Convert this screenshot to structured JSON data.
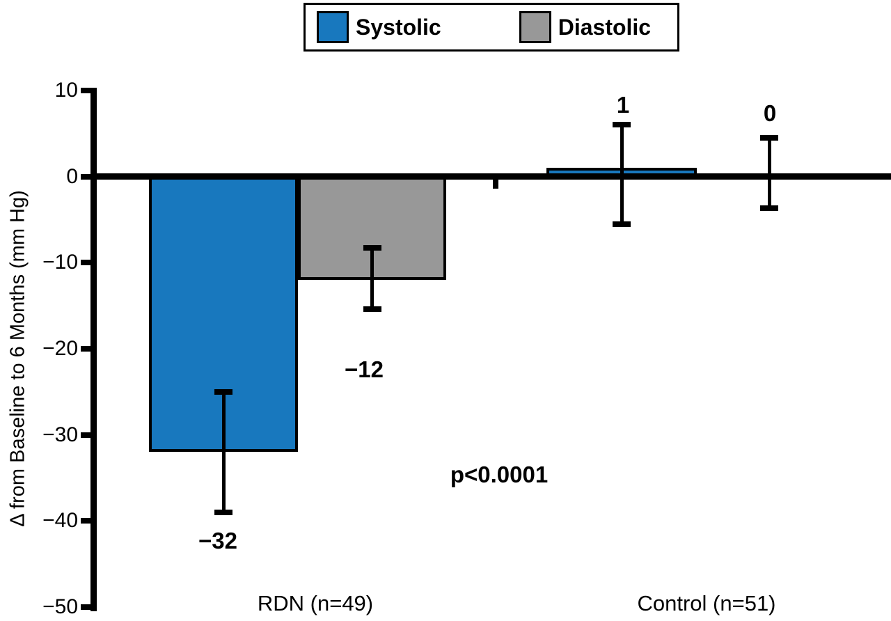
{
  "chart_data": {
    "type": "bar",
    "title": "",
    "ylabel": "Δ from Baseline to 6 Months (mm Hg)",
    "xlabel": "",
    "ylim": [
      -50,
      10
    ],
    "yticks": [
      {
        "value": 10,
        "label": "10"
      },
      {
        "value": 0,
        "label": "0"
      },
      {
        "value": -10,
        "label": "−10"
      },
      {
        "value": -20,
        "label": "−20"
      },
      {
        "value": -30,
        "label": "−30"
      },
      {
        "value": -40,
        "label": "−40"
      },
      {
        "value": -50,
        "label": "−50"
      }
    ],
    "categories": [
      "RDN (n=49)",
      "Control (n=51)"
    ],
    "series": [
      {
        "name": "Systolic",
        "color": "#1878BE",
        "values": [
          -32,
          1
        ],
        "value_labels": [
          "−32",
          "1"
        ],
        "error_high": [
          -25,
          6
        ],
        "error_low": [
          -39,
          -5.5
        ]
      },
      {
        "name": "Diastolic",
        "color": "#989898",
        "values": [
          -12,
          0
        ],
        "value_labels": [
          "−12",
          "0"
        ],
        "error_high": [
          -8.3,
          4.5
        ],
        "error_low": [
          -15.4,
          -3.7
        ]
      }
    ],
    "annotation": "p<0.0001",
    "legend_position": "top",
    "grid": false,
    "axis_color": "#000000",
    "background_color": "#FFFFFF"
  }
}
